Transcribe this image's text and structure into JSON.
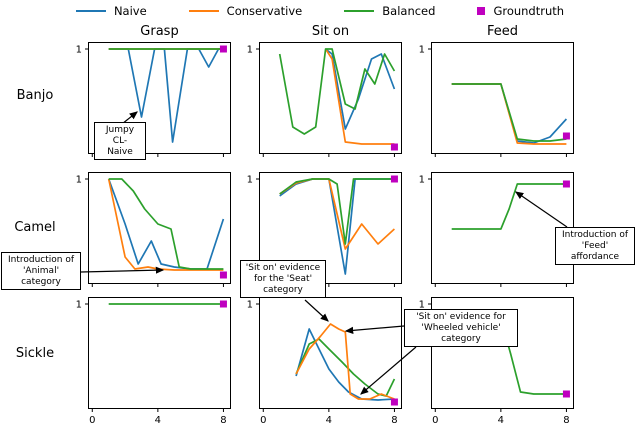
{
  "legend": {
    "items": [
      {
        "label": "Naive",
        "color": "#1f77b4",
        "marker": "line"
      },
      {
        "label": "Conservative",
        "color": "#ff7f0e",
        "marker": "line"
      },
      {
        "label": "Balanced",
        "color": "#2ca02c",
        "marker": "line"
      },
      {
        "label": "Groundtruth",
        "color": "#bf00bf",
        "marker": "square"
      }
    ]
  },
  "columns": [
    "Grasp",
    "Sit on",
    "Feed"
  ],
  "rows": [
    "Banjo",
    "Camel",
    "Sickle"
  ],
  "annotations": {
    "jumpy": {
      "text": "Jumpy CL-\nNaive"
    },
    "animal": {
      "text": "Introduction of\n'Animal'\ncategory"
    },
    "seat": {
      "text": "'Sit on' evidence\nfor the 'Seat'\ncategory"
    },
    "wheeled": {
      "text": "'Sit on' evidence for\n'Wheeled vehicle'\ncategory"
    },
    "feed": {
      "text": "Introduction of\n'Feed'\naffordance"
    }
  },
  "chart_data": {
    "type": "line",
    "xlim": [
      -0.2,
      8.4
    ],
    "ylim": [
      -0.04,
      1.06
    ],
    "x_ticks": [
      0,
      4,
      8
    ],
    "y_ticks": [
      1
    ],
    "series_colors": {
      "naive": "#1f77b4",
      "conservative": "#ff7f0e",
      "balanced": "#2ca02c",
      "groundtruth": "#bf00bf"
    },
    "subplots": [
      {
        "row": "Banjo",
        "col": "Grasp",
        "show_x_labels": false,
        "series": [
          {
            "name": "naive",
            "points": [
              [
                1,
                1
              ],
              [
                2.2,
                1
              ],
              [
                3,
                0.32
              ],
              [
                3.8,
                1
              ],
              [
                4.4,
                1
              ],
              [
                4.9,
                0.07
              ],
              [
                5.8,
                1
              ],
              [
                6.5,
                1
              ],
              [
                7.1,
                0.82
              ],
              [
                7.7,
                1
              ],
              [
                8,
                1
              ]
            ]
          },
          {
            "name": "conservative",
            "points": [
              [
                1,
                1
              ],
              [
                2,
                1
              ],
              [
                3,
                1
              ],
              [
                4,
                1
              ],
              [
                5,
                1
              ],
              [
                6,
                1
              ],
              [
                7,
                1
              ],
              [
                8,
                1
              ]
            ]
          },
          {
            "name": "balanced",
            "points": [
              [
                1,
                1
              ],
              [
                2,
                1
              ],
              [
                3,
                1
              ],
              [
                4,
                1
              ],
              [
                5,
                1
              ],
              [
                6,
                1
              ],
              [
                7,
                1
              ],
              [
                8,
                1
              ]
            ]
          }
        ],
        "groundtruth": [
          8,
          1
        ]
      },
      {
        "row": "Banjo",
        "col": "Sit on",
        "show_x_labels": false,
        "series": [
          {
            "name": "naive",
            "points": [
              [
                3.8,
                1
              ],
              [
                4.2,
                0.95
              ],
              [
                5,
                0.2
              ],
              [
                5.8,
                0.5
              ],
              [
                6.6,
                0.9
              ],
              [
                7.2,
                0.95
              ],
              [
                8,
                0.6
              ]
            ]
          },
          {
            "name": "conservative",
            "points": [
              [
                3.8,
                1
              ],
              [
                4.2,
                0.9
              ],
              [
                5,
                0.07
              ],
              [
                6,
                0.05
              ],
              [
                7,
                0.05
              ],
              [
                8,
                0.05
              ]
            ]
          },
          {
            "name": "balanced",
            "points": [
              [
                1,
                0.95
              ],
              [
                1.8,
                0.22
              ],
              [
                2.5,
                0.15
              ],
              [
                3.2,
                0.22
              ],
              [
                3.8,
                1
              ],
              [
                4.2,
                1
              ],
              [
                5,
                0.45
              ],
              [
                5.6,
                0.4
              ],
              [
                6.2,
                0.8
              ],
              [
                6.8,
                0.65
              ],
              [
                7.4,
                0.95
              ],
              [
                8,
                0.78
              ]
            ]
          }
        ],
        "groundtruth": [
          8,
          0.02
        ]
      },
      {
        "row": "Banjo",
        "col": "Feed",
        "show_x_labels": false,
        "series": [
          {
            "name": "naive",
            "points": [
              [
                1,
                0.65
              ],
              [
                2,
                0.65
              ],
              [
                3,
                0.65
              ],
              [
                4,
                0.65
              ],
              [
                5,
                0.08
              ],
              [
                6,
                0.06
              ],
              [
                7,
                0.12
              ],
              [
                8,
                0.3
              ]
            ]
          },
          {
            "name": "conservative",
            "points": [
              [
                1,
                0.65
              ],
              [
                2,
                0.65
              ],
              [
                3,
                0.65
              ],
              [
                4,
                0.65
              ],
              [
                5,
                0.06
              ],
              [
                6,
                0.05
              ],
              [
                7,
                0.05
              ],
              [
                8,
                0.05
              ]
            ]
          },
          {
            "name": "balanced",
            "points": [
              [
                1,
                0.65
              ],
              [
                2,
                0.65
              ],
              [
                3,
                0.65
              ],
              [
                4,
                0.65
              ],
              [
                5,
                0.1
              ],
              [
                6,
                0.08
              ],
              [
                7,
                0.08
              ],
              [
                8,
                0.1
              ]
            ]
          }
        ],
        "groundtruth": [
          8,
          0.13
        ]
      },
      {
        "row": "Camel",
        "col": "Grasp",
        "show_x_labels": false,
        "series": [
          {
            "name": "naive",
            "points": [
              [
                1,
                1
              ],
              [
                2,
                0.55
              ],
              [
                2.8,
                0.15
              ],
              [
                3.6,
                0.38
              ],
              [
                4.2,
                0.15
              ],
              [
                5,
                0.12
              ],
              [
                6,
                0.1
              ],
              [
                7,
                0.1
              ],
              [
                8,
                0.6
              ]
            ]
          },
          {
            "name": "conservative",
            "points": [
              [
                1,
                1
              ],
              [
                2,
                0.22
              ],
              [
                2.6,
                0.1
              ],
              [
                3.4,
                0.12
              ],
              [
                4,
                0.1
              ],
              [
                5,
                0.09
              ],
              [
                6,
                0.09
              ],
              [
                7,
                0.09
              ],
              [
                8,
                0.09
              ]
            ]
          },
          {
            "name": "balanced",
            "points": [
              [
                1,
                1
              ],
              [
                1.8,
                1
              ],
              [
                2.5,
                0.88
              ],
              [
                3.2,
                0.7
              ],
              [
                4,
                0.55
              ],
              [
                4.8,
                0.5
              ],
              [
                5.3,
                0.12
              ],
              [
                6,
                0.1
              ],
              [
                7,
                0.1
              ],
              [
                8,
                0.1
              ]
            ]
          }
        ],
        "groundtruth": [
          8,
          0.04
        ]
      },
      {
        "row": "Camel",
        "col": "Sit on",
        "show_x_labels": false,
        "series": [
          {
            "name": "naive",
            "points": [
              [
                1,
                0.83
              ],
              [
                2,
                0.95
              ],
              [
                3,
                1
              ],
              [
                4,
                1
              ],
              [
                5,
                0.05
              ],
              [
                5.6,
                1
              ],
              [
                6.5,
                1
              ],
              [
                7.5,
                1
              ],
              [
                8,
                1
              ]
            ]
          },
          {
            "name": "conservative",
            "points": [
              [
                1,
                0.85
              ],
              [
                2,
                0.96
              ],
              [
                3,
                1
              ],
              [
                4,
                1
              ],
              [
                5,
                0.3
              ],
              [
                6,
                0.55
              ],
              [
                7,
                0.35
              ],
              [
                8,
                0.5
              ]
            ]
          },
          {
            "name": "balanced",
            "points": [
              [
                1,
                0.85
              ],
              [
                2,
                0.97
              ],
              [
                3,
                1
              ],
              [
                4,
                1
              ],
              [
                4.5,
                0.95
              ],
              [
                5,
                0.35
              ],
              [
                5.5,
                1
              ],
              [
                6.5,
                1
              ],
              [
                7.5,
                1
              ],
              [
                8,
                1
              ]
            ]
          }
        ],
        "groundtruth": [
          8,
          1
        ]
      },
      {
        "row": "Camel",
        "col": "Feed",
        "show_x_labels": false,
        "series": [
          {
            "name": "balanced",
            "points": [
              [
                1,
                0.5
              ],
              [
                2,
                0.5
              ],
              [
                3,
                0.5
              ],
              [
                4,
                0.5
              ],
              [
                4.5,
                0.7
              ],
              [
                5,
                0.95
              ],
              [
                6,
                0.95
              ],
              [
                7,
                0.95
              ],
              [
                8,
                0.95
              ]
            ]
          }
        ],
        "groundtruth": [
          8,
          0.95
        ]
      },
      {
        "row": "Sickle",
        "col": "Grasp",
        "show_x_labels": true,
        "series": [
          {
            "name": "balanced",
            "points": [
              [
                1,
                1
              ],
              [
                2,
                1
              ],
              [
                3,
                1
              ],
              [
                4,
                1
              ],
              [
                5,
                1
              ],
              [
                6,
                1
              ],
              [
                7,
                1
              ],
              [
                8,
                1
              ]
            ]
          }
        ],
        "groundtruth": [
          8,
          1
        ]
      },
      {
        "row": "Sickle",
        "col": "Sit on",
        "show_x_labels": true,
        "series": [
          {
            "name": "naive",
            "points": [
              [
                2,
                0.28
              ],
              [
                2.8,
                0.75
              ],
              [
                3.4,
                0.55
              ],
              [
                4,
                0.35
              ],
              [
                4.6,
                0.22
              ],
              [
                5.2,
                0.12
              ],
              [
                6,
                0.05
              ],
              [
                7,
                0.04
              ],
              [
                8,
                0.05
              ]
            ]
          },
          {
            "name": "balanced",
            "points": [
              [
                2,
                0.3
              ],
              [
                2.8,
                0.6
              ],
              [
                3.4,
                0.65
              ],
              [
                4,
                0.55
              ],
              [
                4.8,
                0.42
              ],
              [
                5.5,
                0.3
              ],
              [
                6.2,
                0.2
              ],
              [
                7,
                0.1
              ],
              [
                7.5,
                0.08
              ],
              [
                8,
                0.25
              ]
            ]
          },
          {
            "name": "conservative",
            "points": [
              [
                2,
                0.3
              ],
              [
                2.8,
                0.55
              ],
              [
                3.5,
                0.68
              ],
              [
                4.1,
                0.8
              ],
              [
                4.6,
                0.75
              ],
              [
                5,
                0.72
              ],
              [
                5.3,
                0.1
              ],
              [
                5.8,
                0.05
              ],
              [
                6.5,
                0.05
              ],
              [
                7.2,
                0.1
              ],
              [
                8,
                0.05
              ]
            ]
          }
        ],
        "groundtruth": [
          8,
          0.02
        ]
      },
      {
        "row": "Sickle",
        "col": "Feed",
        "show_x_labels": true,
        "series": [
          {
            "name": "balanced",
            "points": [
              [
                1,
                0.85
              ],
              [
                2,
                0.85
              ],
              [
                3,
                0.85
              ],
              [
                4,
                0.85
              ],
              [
                4.6,
                0.5
              ],
              [
                5.2,
                0.12
              ],
              [
                6,
                0.1
              ],
              [
                7,
                0.1
              ],
              [
                8,
                0.1
              ]
            ]
          }
        ],
        "groundtruth": [
          8,
          0.1
        ]
      }
    ]
  }
}
